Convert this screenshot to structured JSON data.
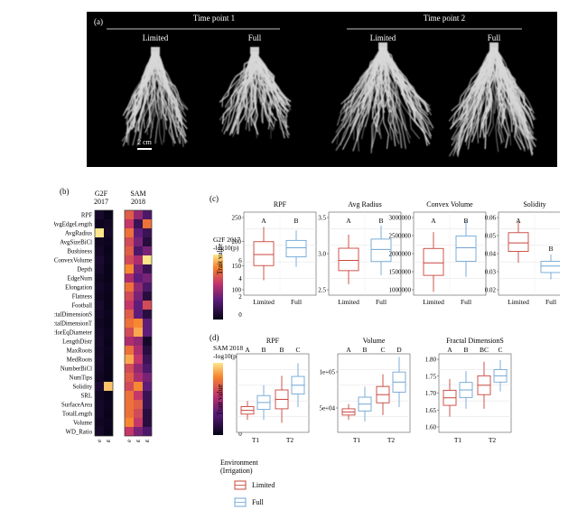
{
  "panel_a": {
    "label": "(a)",
    "timepoint1": "Time point 1",
    "timepoint2": "Time point 2",
    "limited": "Limited",
    "full": "Full",
    "scale": "2 cm"
  },
  "panel_b": {
    "label": "(b)",
    "g2f_title1": "G2F",
    "g2f_title2": "2017",
    "sam_title1": "SAM",
    "sam_title2": "2018",
    "rows": [
      "RPF",
      "AvgEdgeLength",
      "AvgRadius",
      "AvgSizeBiCl",
      "Bushiness",
      "ConvexVolume",
      "Depth",
      "EdgeNum",
      "Elongation",
      "Flatness",
      "Football",
      "FractalDimensionS",
      "FractalDimensionT",
      "HorEqDiameter",
      "LengthDistr",
      "MaxRoots",
      "MedRoots",
      "NumberBiCl",
      "NumTips",
      "Solidity",
      "SRL",
      "SurfaceArea",
      "TotalLength",
      "Volume",
      "WD_Ratio"
    ],
    "g2f_cols": [
      "Genotype",
      "Environment"
    ],
    "sam_cols": [
      "Genotype",
      "Environment",
      "Timepoint"
    ],
    "g2f_values": [
      [
        0.5,
        0.1
      ],
      [
        0.2,
        0.3
      ],
      [
        7.0,
        0.4
      ],
      [
        0.3,
        0.2
      ],
      [
        0.4,
        0.1
      ],
      [
        0.6,
        0.2
      ],
      [
        0.5,
        0.1
      ],
      [
        0.3,
        0.1
      ],
      [
        0.4,
        0.2
      ],
      [
        0.3,
        0.1
      ],
      [
        0.5,
        0.1
      ],
      [
        0.4,
        0.2
      ],
      [
        0.3,
        0.1
      ],
      [
        0.4,
        0.2
      ],
      [
        0.5,
        0.1
      ],
      [
        0.4,
        0.2
      ],
      [
        0.5,
        0.1
      ],
      [
        0.4,
        0.1
      ],
      [
        0.3,
        0.1
      ],
      [
        0.6,
        6.5
      ],
      [
        0.3,
        0.1
      ],
      [
        0.4,
        0.2
      ],
      [
        0.4,
        0.1
      ],
      [
        0.3,
        0.2
      ],
      [
        0.4,
        0.1
      ]
    ],
    "sam_values": [
      [
        11,
        7,
        4
      ],
      [
        9,
        3,
        12
      ],
      [
        12,
        5,
        3
      ],
      [
        10,
        6,
        2
      ],
      [
        11,
        4,
        6
      ],
      [
        10,
        8,
        16
      ],
      [
        13,
        6,
        3
      ],
      [
        8,
        5,
        6
      ],
      [
        12,
        7,
        4
      ],
      [
        10,
        6,
        2
      ],
      [
        9,
        5,
        10
      ],
      [
        11,
        5,
        2
      ],
      [
        12,
        13,
        5
      ],
      [
        10,
        14,
        5
      ],
      [
        8,
        7,
        1
      ],
      [
        12,
        8,
        2
      ],
      [
        14,
        9,
        3
      ],
      [
        10,
        7,
        4
      ],
      [
        11,
        8,
        6
      ],
      [
        10,
        13,
        5
      ],
      [
        12,
        9,
        3
      ],
      [
        12,
        11,
        3
      ],
      [
        12,
        10,
        2
      ],
      [
        13,
        9,
        2
      ],
      [
        9,
        6,
        4
      ]
    ],
    "legend_g2f_title1": "G2F 2017",
    "legend_g2f_title2": "-log10(p)",
    "legend_g2f_ticks": [
      "6",
      "4",
      "2",
      "0"
    ],
    "legend_sam_title1": "SAM 2018",
    "legend_sam_title2": "-log10(p)",
    "legend_sam_ticks": [
      "16",
      "12",
      "8",
      "4",
      "0"
    ]
  },
  "panel_c": {
    "label": "(c)",
    "ylabel": "Trait value",
    "limited": "Limited",
    "full": "Full",
    "plots": [
      {
        "title": "RPF",
        "yticks": [
          "250",
          "200",
          "150",
          "100"
        ],
        "letters": [
          "A",
          "B"
        ]
      },
      {
        "title": "Avg Radius",
        "yticks": [
          "3.5",
          "3.0",
          "2.5"
        ],
        "letters": [
          "A",
          "B"
        ]
      },
      {
        "title": "Convex Volume",
        "yticks": [
          "3000000",
          "2500000",
          "2000000",
          "1500000",
          "1000000"
        ],
        "letters": [
          "A",
          "B"
        ]
      },
      {
        "title": "Solidity",
        "yticks": [
          "0.06",
          "0.05",
          "0.04",
          "0.03",
          "0.02"
        ],
        "letters": [
          "A",
          "B"
        ]
      }
    ]
  },
  "panel_d": {
    "label": "(d)",
    "ylabel": "Trait value",
    "t1": "T1",
    "t2": "T2",
    "plots": [
      {
        "title": "RPF",
        "yticks": [],
        "letters": [
          "A",
          "B",
          "B",
          "C"
        ]
      },
      {
        "title": "Volume",
        "yticks": [
          "1e+05",
          "5e+04"
        ],
        "letters": [
          "A",
          "B",
          "C",
          "D"
        ]
      },
      {
        "title": "Fractal DimensionS",
        "yticks": [
          "1.80",
          "1.75",
          "1.70",
          "1.65",
          "1.60"
        ],
        "letters": [
          "A",
          "B",
          "BC",
          "C"
        ]
      }
    ],
    "legend_title1": "Environment",
    "legend_title2": "(Irrigation)",
    "legend_limited": "Limited",
    "legend_full": "Full"
  },
  "colors": {
    "limited": "#c9443a",
    "full": "#6fa6d6"
  }
}
